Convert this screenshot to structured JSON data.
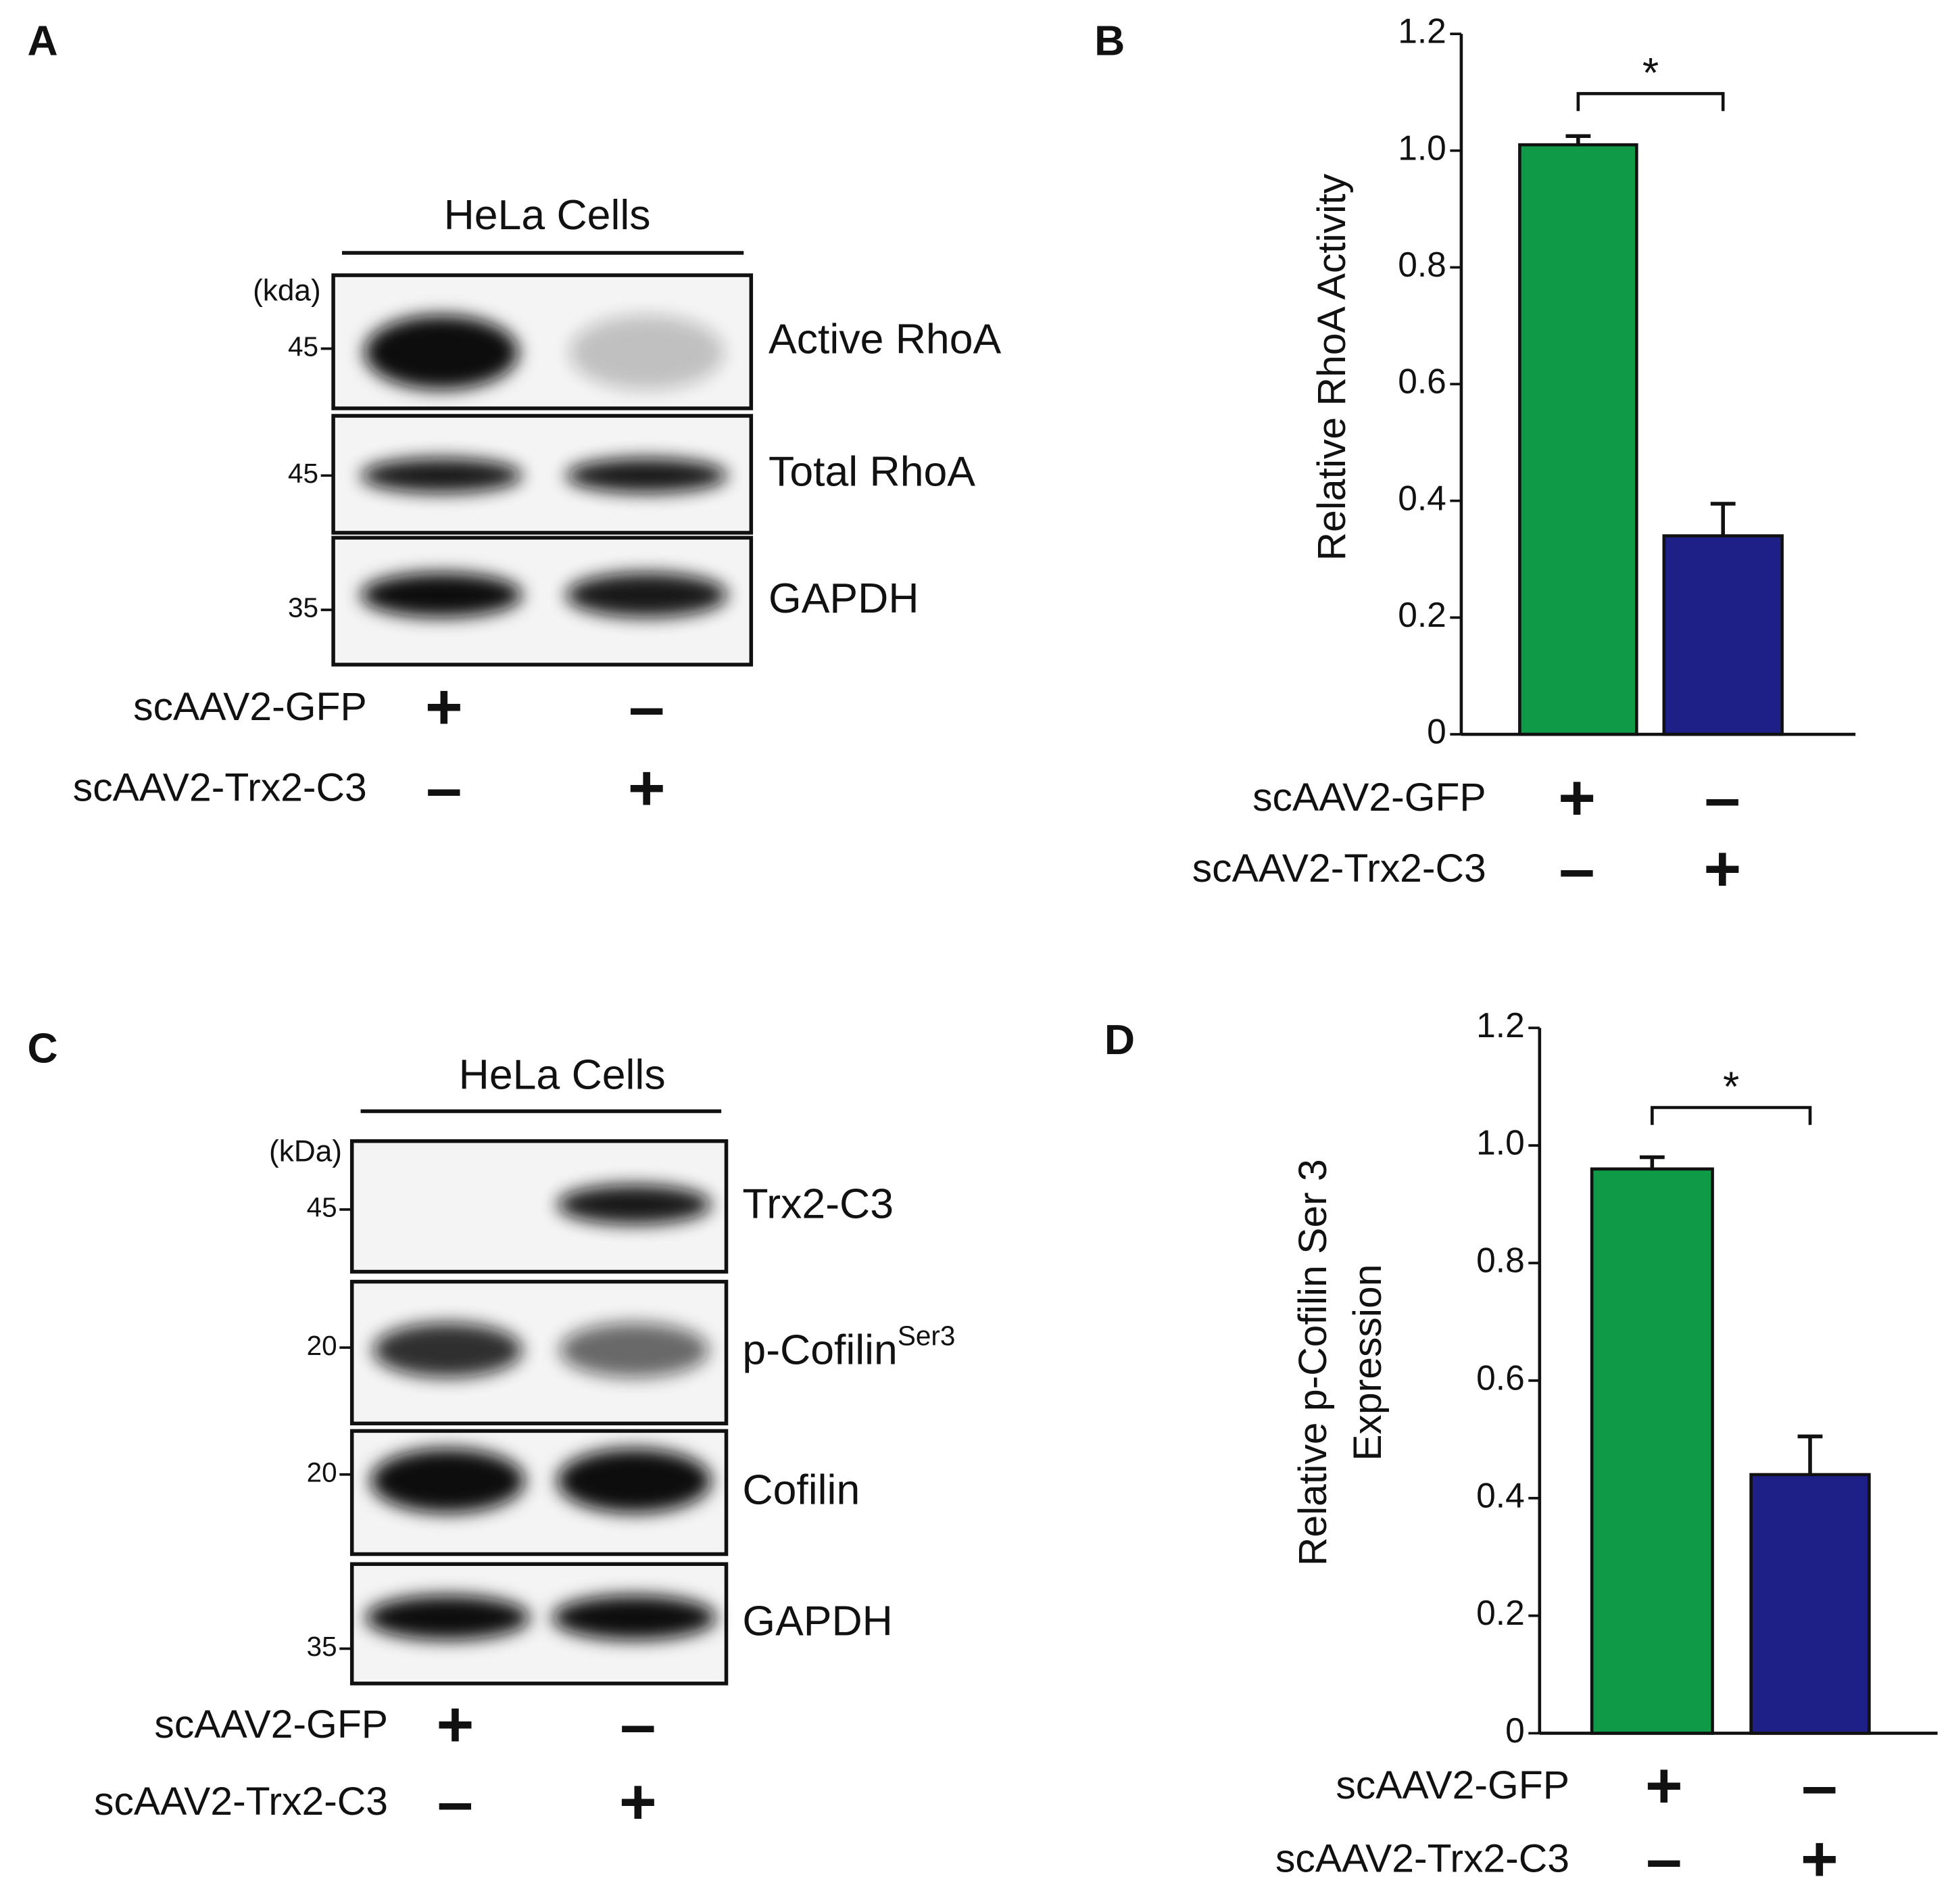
{
  "panels": [
    {
      "letter": "A",
      "header": "HeLa Cells",
      "unit": "(kda)",
      "lanes": [
        {
          "marker": "45",
          "label": "Active RhoA"
        },
        {
          "marker": "45",
          "label": "Total RhoA"
        },
        {
          "marker": "35",
          "label": "GAPDH"
        }
      ],
      "conditions": [
        {
          "label": "scAAV2-GFP",
          "signs": [
            "+",
            "–"
          ]
        },
        {
          "label": "scAAV2-Trx2-C3",
          "signs": [
            "–",
            "+"
          ]
        }
      ]
    },
    {
      "letter": "C",
      "header": "HeLa Cells",
      "unit": "(kDa)",
      "lanes": [
        {
          "marker": "45",
          "label": "Trx2-C3"
        },
        {
          "marker": "20",
          "label": "p-Cofilin",
          "superscript": "Ser3"
        },
        {
          "marker": "20",
          "label": "Cofilin"
        },
        {
          "marker": "35",
          "label": "GAPDH"
        }
      ],
      "conditions": [
        {
          "label": "scAAV2-GFP",
          "signs": [
            "+",
            "–"
          ]
        },
        {
          "label": "scAAV2-Trx2-C3",
          "signs": [
            "–",
            "+"
          ]
        }
      ]
    }
  ],
  "chart_data": [
    {
      "type": "bar",
      "letter": "B",
      "y_label": [
        "Relative RhoA Activity"
      ],
      "significance": "*",
      "values": [
        1.01,
        0.34
      ],
      "errors": [
        0.015,
        0.055
      ],
      "colors": [
        "#0f9a48",
        "#1e2088"
      ],
      "ylim": [
        0,
        1.2
      ],
      "yticks": [
        0,
        0.2,
        0.4,
        0.6,
        0.8,
        {
          "value": 1,
          "label": "1.0"
        },
        1.2
      ],
      "conditions": [
        {
          "label": "scAAV2-GFP",
          "signs": [
            "+",
            "–"
          ]
        },
        {
          "label": "scAAV2-Trx2-C3",
          "signs": [
            "–",
            "+"
          ]
        }
      ]
    },
    {
      "type": "bar",
      "letter": "D",
      "y_label": [
        "Relative p-Cofilin Ser 3",
        "Expression"
      ],
      "significance": "*",
      "values": [
        0.96,
        0.44
      ],
      "errors": [
        0.02,
        0.065
      ],
      "colors": [
        "#0f9a48",
        "#1e2088"
      ],
      "ylim": [
        0,
        1.2
      ],
      "yticks": [
        0,
        0.2,
        0.4,
        0.6,
        0.8,
        {
          "value": 1,
          "label": "1.0"
        },
        1.2
      ],
      "conditions": [
        {
          "label": "scAAV2-GFP",
          "signs": [
            "+",
            "–"
          ]
        },
        {
          "label": "scAAV2-Trx2-C3",
          "signs": [
            "–",
            "+"
          ]
        }
      ]
    }
  ]
}
